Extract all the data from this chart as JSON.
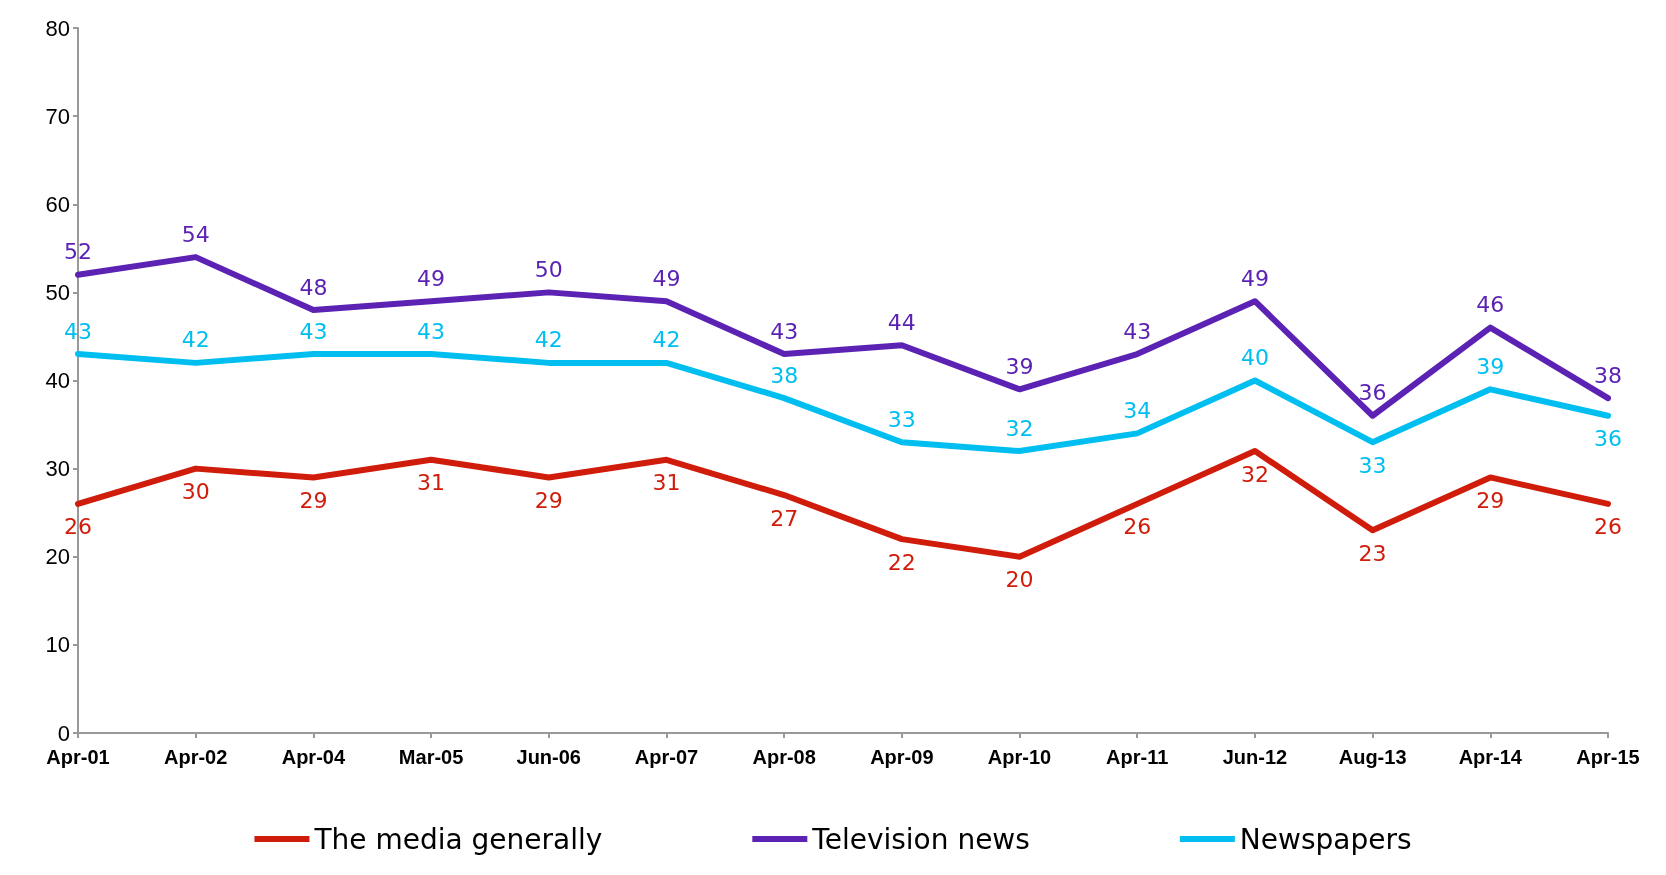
{
  "chart_data": {
    "type": "line",
    "categories": [
      "Apr-01",
      "Apr-02",
      "Apr-04",
      "Mar-05",
      "Jun-06",
      "Apr-07",
      "Apr-08",
      "Apr-09",
      "Apr-10",
      "Apr-11",
      "Jun-12",
      "Aug-13",
      "Apr-14",
      "Apr-15"
    ],
    "series": [
      {
        "name": "The media generally",
        "color": "#d01c0b",
        "values": [
          26,
          30,
          29,
          31,
          29,
          31,
          27,
          22,
          20,
          26,
          32,
          23,
          29,
          26
        ]
      },
      {
        "name": "Television news",
        "color": "#5b22b4",
        "values": [
          52,
          54,
          48,
          49,
          50,
          49,
          43,
          44,
          39,
          43,
          49,
          36,
          46,
          38
        ]
      },
      {
        "name": "Newspapers",
        "color": "#00bff0",
        "values": [
          43,
          42,
          43,
          43,
          42,
          42,
          38,
          33,
          32,
          34,
          40,
          33,
          39,
          36
        ]
      }
    ],
    "ylim": [
      0,
      80
    ],
    "yticks": [
      0,
      10,
      20,
      30,
      40,
      50,
      60,
      70,
      80
    ],
    "grid": false,
    "legend": "bottom",
    "data_labels": true,
    "marker": "none",
    "line_style": "solid"
  }
}
